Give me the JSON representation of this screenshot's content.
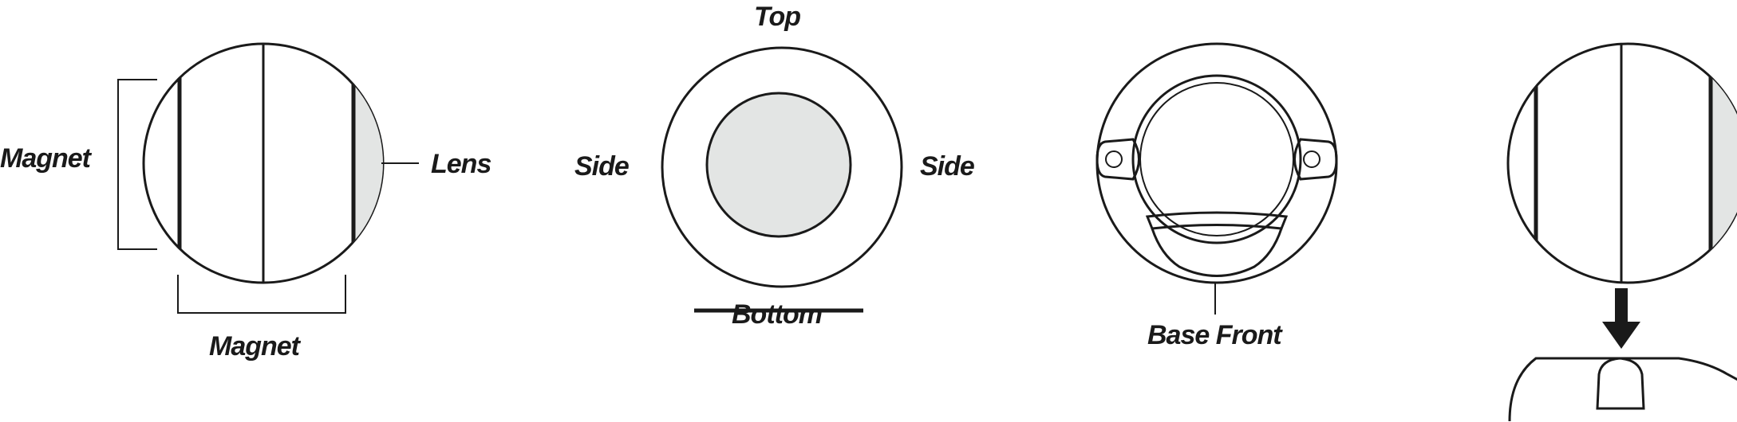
{
  "labels": {
    "magnet_side": "Magnet",
    "lens": "Lens",
    "magnet_bottom": "Magnet",
    "top": "Top",
    "side_left": "Side",
    "side_right": "Side",
    "bottom": "Bottom",
    "base_front": "Base Front"
  },
  "colors": {
    "line": "#1a1a1a",
    "lens_fill": "#e3e5e4",
    "background": "#ffffff"
  },
  "icons": {
    "mount_arrow": "arrow-down-icon"
  }
}
